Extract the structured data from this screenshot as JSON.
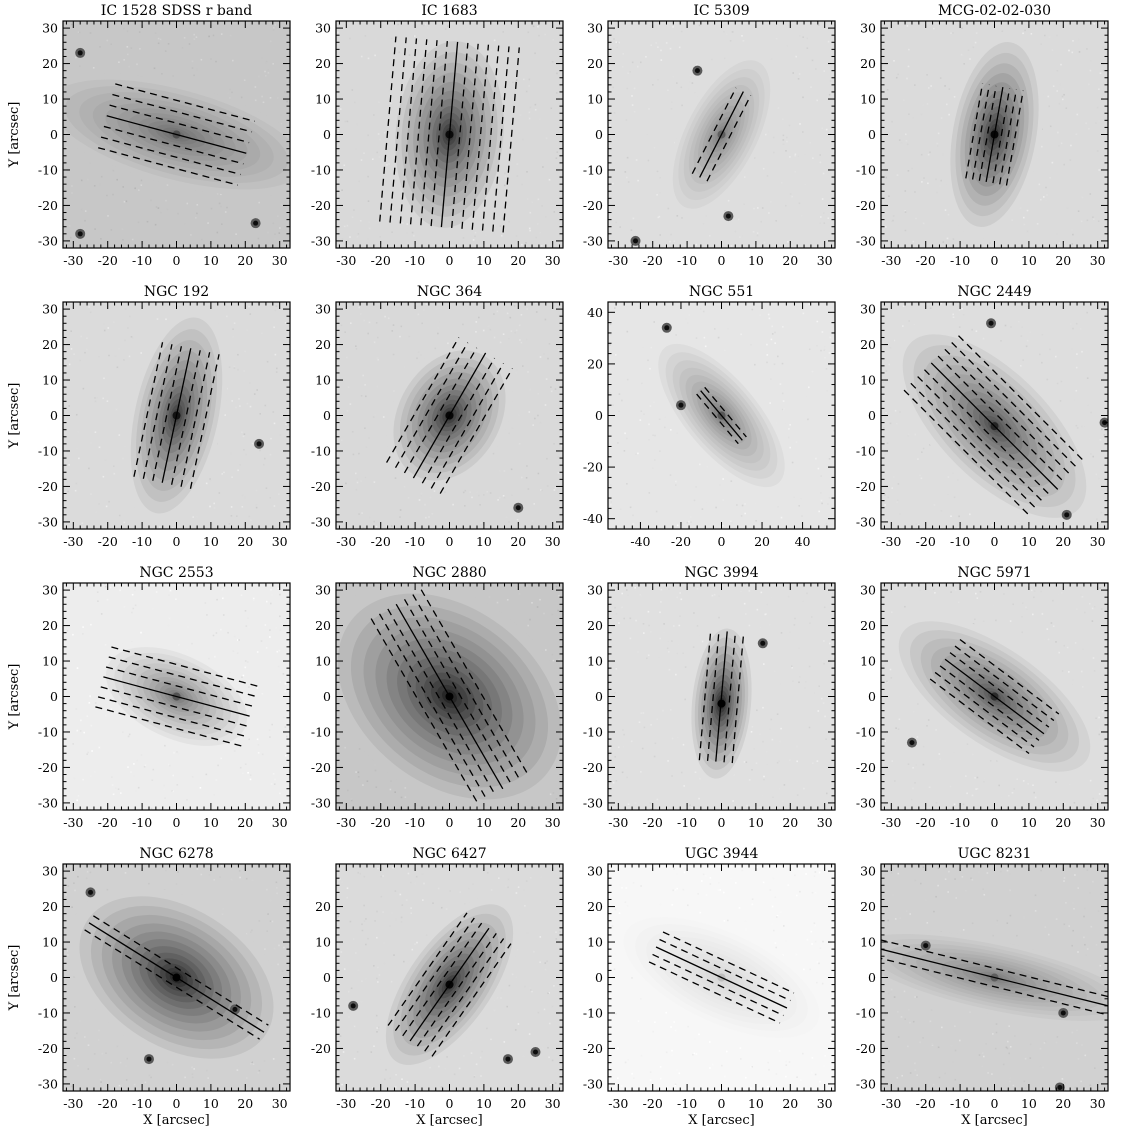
{
  "figure": {
    "x_axis_label": "X [arcsec]",
    "y_axis_label": "Y [arcsec]",
    "panels": [
      {
        "title": "IC 1528 SDSS r band",
        "xticks": [
          "-30",
          "-20",
          "-10",
          "0",
          "10",
          "20",
          "30"
        ],
        "yticks": [
          "-30",
          "-20",
          "-10",
          "0",
          "10",
          "20",
          "30"
        ],
        "xlim": [
          -33,
          33
        ],
        "ylim": [
          -32,
          32
        ],
        "galaxy": {
          "center": [
            0,
            0
          ],
          "pa": -15,
          "semi_major": 42,
          "semi_minor": 14,
          "peak_gray": 0.38,
          "bg_gray": 0.78
        },
        "slits": {
          "center": [
            0,
            0
          ],
          "pa": -15,
          "length": 42,
          "n_side": 3,
          "step": 3.2,
          "dashed_sides": true
        },
        "stars": [
          [
            -28,
            23
          ],
          [
            -28,
            -28
          ],
          [
            23,
            -25
          ]
        ]
      },
      {
        "title": "IC 1683",
        "xticks": [
          "-30",
          "-20",
          "-10",
          "0",
          "10",
          "20",
          "30"
        ],
        "yticks": [
          "-30",
          "-20",
          "-10",
          "0",
          "10",
          "20",
          "30"
        ],
        "xlim": [
          -33,
          33
        ],
        "ylim": [
          -32,
          32
        ],
        "galaxy": {
          "center": [
            0,
            0
          ],
          "pa": 85,
          "semi_major": 30,
          "semi_minor": 17,
          "peak_gray": 0.12,
          "bg_gray": 0.85
        },
        "slits": {
          "center": [
            0,
            0
          ],
          "pa": 85,
          "length": 54,
          "n_side": 6,
          "step": 3.0,
          "dashed_sides": true
        },
        "stars": []
      },
      {
        "title": "IC 5309",
        "xticks": [
          "-30",
          "-20",
          "-10",
          "0",
          "10",
          "20",
          "30"
        ],
        "yticks": [
          "-30",
          "-20",
          "-10",
          "0",
          "10",
          "20",
          "30"
        ],
        "xlim": [
          -33,
          33
        ],
        "ylim": [
          -32,
          32
        ],
        "galaxy": {
          "center": [
            0,
            0
          ],
          "pa": 63,
          "semi_major": 26,
          "semi_minor": 11,
          "peak_gray": 0.45,
          "bg_gray": 0.87
        },
        "slits": {
          "center": [
            0,
            0
          ],
          "pa": 63,
          "length": 28,
          "n_side": 1,
          "step": 2.4,
          "dashed_sides": true
        },
        "stars": [
          [
            2,
            -23
          ],
          [
            -25,
            -30
          ],
          [
            -7,
            18
          ]
        ]
      },
      {
        "title": "MCG-02-02-030",
        "xticks": [
          "-30",
          "-20",
          "-10",
          "0",
          "10",
          "20",
          "30"
        ],
        "yticks": [
          "-30",
          "-20",
          "-10",
          "0",
          "10",
          "20",
          "30"
        ],
        "xlim": [
          -33,
          33
        ],
        "ylim": [
          -32,
          32
        ],
        "galaxy": {
          "center": [
            0,
            0
          ],
          "pa": 80,
          "semi_major": 30,
          "semi_minor": 13,
          "peak_gray": 0.1,
          "bg_gray": 0.86
        },
        "slits": {
          "center": [
            0,
            0
          ],
          "pa": 80,
          "length": 28,
          "n_side": 3,
          "step": 2.0,
          "dashed_sides": true
        },
        "stars": []
      },
      {
        "title": "NGC 192",
        "xticks": [
          "-30",
          "-20",
          "-10",
          "0",
          "10",
          "20",
          "30"
        ],
        "yticks": [
          "-30",
          "-20",
          "-10",
          "0",
          "10",
          "20",
          "30"
        ],
        "xlim": [
          -33,
          33
        ],
        "ylim": [
          -32,
          32
        ],
        "galaxy": {
          "center": [
            0,
            0
          ],
          "pa": 78,
          "semi_major": 32,
          "semi_minor": 13,
          "peak_gray": 0.15,
          "bg_gray": 0.86
        },
        "slits": {
          "center": [
            0,
            0
          ],
          "pa": 78,
          "length": 40,
          "n_side": 3,
          "step": 2.8,
          "dashed_sides": true
        },
        "stars": [
          [
            24,
            -8
          ]
        ]
      },
      {
        "title": "NGC 364",
        "xticks": [
          "-30",
          "-20",
          "-10",
          "0",
          "10",
          "20",
          "30"
        ],
        "yticks": [
          "-30",
          "-20",
          "-10",
          "0",
          "10",
          "20",
          "30"
        ],
        "xlim": [
          -33,
          33
        ],
        "ylim": [
          -32,
          32
        ],
        "galaxy": {
          "center": [
            0,
            0
          ],
          "pa": 60,
          "semi_major": 22,
          "semi_minor": 16,
          "peak_gray": 0.1,
          "bg_gray": 0.85
        },
        "slits": {
          "center": [
            0,
            0
          ],
          "pa": 60,
          "length": 42,
          "n_side": 3,
          "step": 3.0,
          "dashed_sides": true
        },
        "stars": [
          [
            20,
            -26
          ]
        ]
      },
      {
        "title": "NGC 551",
        "xticks": [
          "-40",
          "-20",
          "0",
          "20",
          "40"
        ],
        "yticks": [
          "-40",
          "-20",
          "0",
          "20",
          "40"
        ],
        "xlim": [
          -56,
          56
        ],
        "ylim": [
          -44,
          44
        ],
        "galaxy": {
          "center": [
            0,
            0
          ],
          "pa": -50,
          "semi_major": 48,
          "semi_minor": 19,
          "peak_gray": 0.42,
          "bg_gray": 0.9
        },
        "slits": {
          "center": [
            0,
            0
          ],
          "pa": -50,
          "length": 32,
          "n_side": 1,
          "step": 2.6,
          "dashed_sides": true
        },
        "stars": [
          [
            -27,
            34
          ],
          [
            -20,
            4
          ]
        ]
      },
      {
        "title": "NGC 2449",
        "xticks": [
          "-30",
          "-20",
          "-10",
          "0",
          "10",
          "20",
          "30"
        ],
        "yticks": [
          "-30",
          "-20",
          "-10",
          "0",
          "10",
          "20",
          "30"
        ],
        "xlim": [
          -33,
          33
        ],
        "ylim": [
          -32,
          32
        ],
        "galaxy": {
          "center": [
            0,
            -3
          ],
          "pa": -45,
          "semi_major": 38,
          "semi_minor": 17,
          "peak_gray": 0.22,
          "bg_gray": 0.87
        },
        "slits": {
          "center": [
            0,
            -3
          ],
          "pa": -45,
          "length": 52,
          "n_side": 4,
          "step": 2.8,
          "dashed_sides": true
        },
        "stars": [
          [
            -1,
            26
          ],
          [
            32,
            -2
          ],
          [
            21,
            -28
          ]
        ]
      },
      {
        "title": "NGC 2553",
        "xticks": [
          "-30",
          "-20",
          "-10",
          "0",
          "10",
          "20",
          "30"
        ],
        "yticks": [
          "-30",
          "-20",
          "-10",
          "0",
          "10",
          "20",
          "30"
        ],
        "xlim": [
          -33,
          33
        ],
        "ylim": [
          -32,
          32
        ],
        "galaxy": {
          "center": [
            0,
            0
          ],
          "pa": -25,
          "semi_major": 24,
          "semi_minor": 13,
          "peak_gray": 0.4,
          "bg_gray": 0.93
        },
        "slits": {
          "center": [
            0,
            0
          ],
          "pa": -15,
          "length": 44,
          "n_side": 3,
          "step": 3.0,
          "dashed_sides": true
        },
        "stars": []
      },
      {
        "title": "NGC 2880",
        "xticks": [
          "-30",
          "-20",
          "-10",
          "0",
          "10",
          "20",
          "30"
        ],
        "yticks": [
          "-30",
          "-20",
          "-10",
          "0",
          "10",
          "20",
          "30"
        ],
        "xlim": [
          -33,
          33
        ],
        "ylim": [
          -32,
          32
        ],
        "galaxy": {
          "center": [
            0,
            0
          ],
          "pa": -38,
          "semi_major": 40,
          "semi_minor": 28,
          "peak_gray": 0.05,
          "bg_gray": 0.78
        },
        "slits": {
          "center": [
            0,
            0
          ],
          "pa": -60,
          "length": 62,
          "n_side": 3,
          "step": 2.8,
          "dashed_sides": true
        },
        "stars": []
      },
      {
        "title": "NGC 3994",
        "xticks": [
          "-30",
          "-20",
          "-10",
          "0",
          "10",
          "20",
          "30"
        ],
        "yticks": [
          "-30",
          "-20",
          "-10",
          "0",
          "10",
          "20",
          "30"
        ],
        "xlim": [
          -33,
          33
        ],
        "ylim": [
          -32,
          32
        ],
        "galaxy": {
          "center": [
            0,
            -2
          ],
          "pa": 85,
          "semi_major": 24,
          "semi_minor": 9,
          "peak_gray": 0.05,
          "bg_gray": 0.88
        },
        "slits": {
          "center": [
            0,
            0
          ],
          "pa": 85,
          "length": 38,
          "n_side": 2,
          "step": 2.4,
          "dashed_sides": true
        },
        "stars": [
          [
            12,
            15
          ]
        ]
      },
      {
        "title": "NGC 5971",
        "xticks": [
          "-30",
          "-20",
          "-10",
          "0",
          "10",
          "20",
          "30"
        ],
        "yticks": [
          "-30",
          "-20",
          "-10",
          "0",
          "10",
          "20",
          "30"
        ],
        "xlim": [
          -33,
          33
        ],
        "ylim": [
          -32,
          32
        ],
        "galaxy": {
          "center": [
            0,
            0
          ],
          "pa": -35,
          "semi_major": 36,
          "semi_minor": 15,
          "peak_gray": 0.25,
          "bg_gray": 0.87
        },
        "slits": {
          "center": [
            0,
            0
          ],
          "pa": -37,
          "length": 36,
          "n_side": 3,
          "step": 2.4,
          "dashed_sides": true
        },
        "stars": [
          [
            -24,
            -13
          ]
        ]
      },
      {
        "title": "NGC 6278",
        "xticks": [
          "-30",
          "-20",
          "-10",
          "0",
          "10",
          "20",
          "30"
        ],
        "yticks": [
          "-30",
          "-20",
          "-10",
          "0",
          "10",
          "20",
          "30"
        ],
        "xlim": [
          -33,
          33
        ],
        "ylim": [
          -32,
          32
        ],
        "galaxy": {
          "center": [
            0,
            0
          ],
          "pa": -32,
          "semi_major": 34,
          "semi_minor": 22,
          "peak_gray": 0.05,
          "bg_gray": 0.82
        },
        "slits": {
          "center": [
            0,
            0
          ],
          "pa": -32,
          "length": 60,
          "n_side": 1,
          "step": 2.4,
          "dashed_sides": true
        },
        "stars": [
          [
            -25,
            24
          ],
          [
            17,
            -9
          ],
          [
            -8,
            -23
          ]
        ]
      },
      {
        "title": "NGC 6427",
        "xticks": [
          "-30",
          "-20",
          "-10",
          "0",
          "10",
          "20",
          "30"
        ],
        "yticks": [
          "-20",
          "-10",
          "0",
          "10",
          "20"
        ],
        "xlim": [
          -33,
          33
        ],
        "ylim": [
          -32,
          32
        ],
        "galaxy": {
          "center": [
            0,
            -2
          ],
          "pa": 55,
          "semi_major": 30,
          "semi_minor": 13,
          "peak_gray": 0.1,
          "bg_gray": 0.86
        },
        "slits": {
          "center": [
            0,
            -2
          ],
          "pa": 55,
          "length": 40,
          "n_side": 3,
          "step": 2.6,
          "dashed_sides": true
        },
        "stars": [
          [
            17,
            -23
          ],
          [
            25,
            -21
          ],
          [
            -28,
            -8
          ]
        ]
      },
      {
        "title": "UGC 3944",
        "xticks": [
          "-30",
          "-20",
          "-10",
          "0",
          "10",
          "20",
          "30"
        ],
        "yticks": [
          "-30",
          "-20",
          "-10",
          "0",
          "10",
          "20",
          "30"
        ],
        "xlim": [
          -33,
          33
        ],
        "ylim": [
          -32,
          32
        ],
        "galaxy": {
          "center": [
            0,
            0
          ],
          "pa": -25,
          "semi_major": 34,
          "semi_minor": 14,
          "peak_gray": 0.82,
          "bg_gray": 0.97
        },
        "slits": {
          "center": [
            0,
            0
          ],
          "pa": -25,
          "length": 42,
          "n_side": 2,
          "step": 2.4,
          "dashed_sides": true
        },
        "stars": []
      },
      {
        "title": "UGC 8231",
        "xticks": [
          "-30",
          "-20",
          "-10",
          "0",
          "10",
          "20",
          "30"
        ],
        "yticks": [
          "-30",
          "-20",
          "-10",
          "0",
          "10",
          "20",
          "30"
        ],
        "xlim": [
          -33,
          33
        ],
        "ylim": [
          -32,
          32
        ],
        "galaxy": {
          "center": [
            0,
            0
          ],
          "pa": -12,
          "semi_major": 46,
          "semi_minor": 10,
          "peak_gray": 0.45,
          "bg_gray": 0.82
        },
        "slits": {
          "center": [
            0,
            0
          ],
          "pa": -14,
          "length": 70,
          "n_side": 1,
          "step": 2.6,
          "dashed_sides": true
        },
        "stars": [
          [
            20,
            -10
          ],
          [
            19,
            -31
          ],
          [
            -20,
            9
          ]
        ]
      }
    ]
  }
}
